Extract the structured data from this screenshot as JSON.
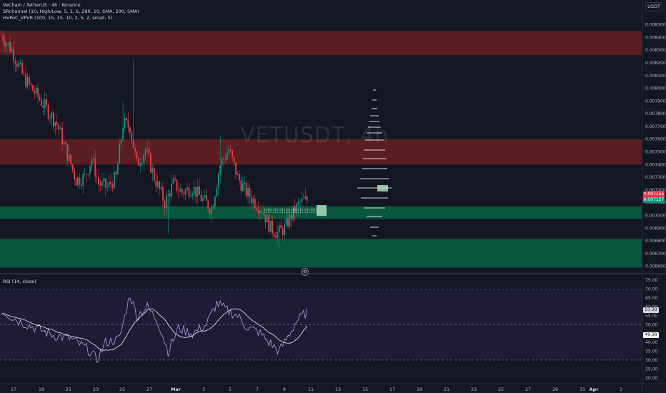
{
  "title": "VeChain / TetherUS · 4h · Binance",
  "indicators": [
    "SRchannel (10, High/Low, 5, 1, 6, 290, 10, SMA, 200, SMA)",
    "HVPoC_VPVR (100, 15, 15, 10, 2, 5, 2, small, 5)"
  ],
  "watermark": "VETUSDT, 4h",
  "currency_button": "USDT",
  "price_axis": {
    "min": 0.006542,
    "max": 0.008582,
    "ticks": [
      "0.008500",
      "0.008400",
      "0.008300",
      "0.008200",
      "0.008100",
      "0.008000",
      "0.007900",
      "0.007800",
      "0.007700",
      "0.007600",
      "0.007500",
      "0.007400",
      "0.007300",
      "0.007200",
      "0.007100",
      "0.007000",
      "0.006900",
      "0.006800",
      "0.006700",
      "0.006600"
    ],
    "current_tags": [
      {
        "value": "0.007155",
        "color": "#f23645"
      },
      {
        "value": "0.007127",
        "color": "#089981"
      }
    ]
  },
  "zones": [
    {
      "type": "resistance",
      "top": 0.00845,
      "bottom": 0.00826,
      "color": "#5c1f24"
    },
    {
      "type": "resistance",
      "top": 0.0076,
      "bottom": 0.0074,
      "color": "#5c1f24"
    },
    {
      "type": "support",
      "top": 0.007072,
      "bottom": 0.006972,
      "color": "#0a5a3e"
    },
    {
      "type": "support",
      "top": 0.006814,
      "bottom": 0.00659,
      "color": "#0a5a3e"
    }
  ],
  "rsi": {
    "title": "RSI (14, close)",
    "ticks": [
      "75.00",
      "70.00",
      "65.00",
      "60.00",
      "55.00",
      "50.00",
      "45.00",
      "40.00",
      "35.00",
      "30.00",
      "25.00",
      "20.00"
    ],
    "value_tag": "57.30",
    "ma_tag": "49.38",
    "upper_band": 70,
    "middle_band": 50,
    "lower_band": 30
  },
  "time_axis": [
    {
      "label": "17",
      "bold": false
    },
    {
      "label": "19",
      "bold": false
    },
    {
      "label": "21",
      "bold": false
    },
    {
      "label": "23",
      "bold": false
    },
    {
      "label": "25",
      "bold": false
    },
    {
      "label": "27",
      "bold": false
    },
    {
      "label": "Mar",
      "bold": true
    },
    {
      "label": "3",
      "bold": false
    },
    {
      "label": "5",
      "bold": false
    },
    {
      "label": "7",
      "bold": false
    },
    {
      "label": "9",
      "bold": false
    },
    {
      "label": "11",
      "bold": false
    },
    {
      "label": "13",
      "bold": false
    },
    {
      "label": "15",
      "bold": false
    },
    {
      "label": "17",
      "bold": false
    },
    {
      "label": "19",
      "bold": false
    },
    {
      "label": "21",
      "bold": false
    },
    {
      "label": "23",
      "bold": false
    },
    {
      "label": "25",
      "bold": false
    },
    {
      "label": "27",
      "bold": false
    },
    {
      "label": "29",
      "bold": false
    },
    {
      "label": "31",
      "bold": false
    },
    {
      "label": "Apr",
      "bold": true
    },
    {
      "label": "3",
      "bold": false
    }
  ],
  "colors": {
    "up": "#089981",
    "down": "#f23645",
    "rsi_line": "#b39ddb",
    "rsi_ma": "#e8e8e8"
  },
  "replay_icon": "replay-icon"
}
